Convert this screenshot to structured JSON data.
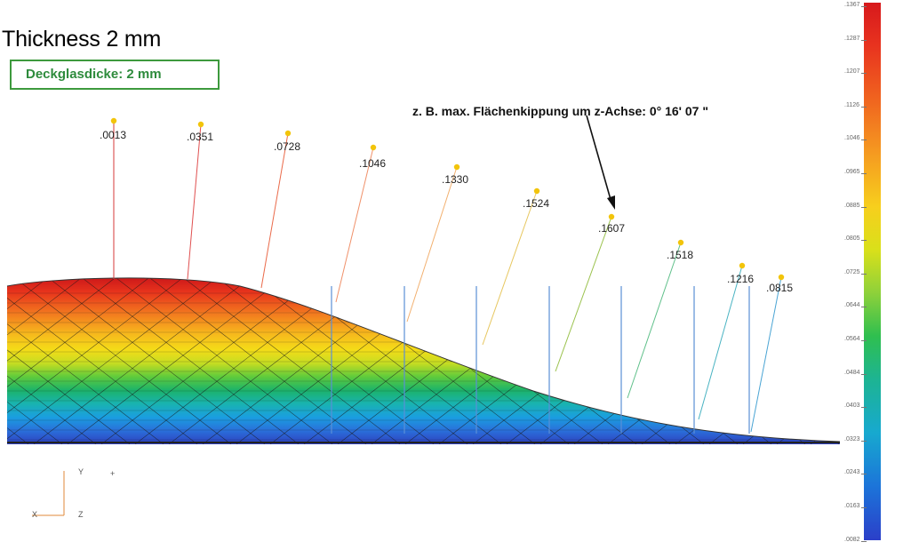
{
  "heading": "Thickness 2 mm",
  "box_label": "Deckglasdicke: 2 mm",
  "annotation": "z. B. max. Flächenkippung um z-Achse:   0° 16'  07 \"",
  "callouts": [
    {
      "label": ".0013"
    },
    {
      "label": ".0351"
    },
    {
      "label": ".0728"
    },
    {
      "label": ".1046"
    },
    {
      "label": ".1330"
    },
    {
      "label": ".1524"
    },
    {
      "label": ".1607"
    },
    {
      "label": ".1518"
    },
    {
      "label": ".1216"
    },
    {
      "label": ".0815"
    }
  ],
  "scale_ticks": [
    ".1367",
    ".1287",
    ".1207",
    ".1126",
    ".1046",
    ".0965",
    ".0885",
    ".0805",
    ".0725",
    ".0644",
    ".0564",
    ".0484",
    ".0403",
    ".0323",
    ".0243",
    ".0163",
    ".0082"
  ],
  "axis": {
    "y_label": "Y",
    "x_label": "X",
    "z_label": "Z",
    "plus": "+"
  },
  "colors": {
    "box_border": "#3d9a3d",
    "box_text": "#2e8b3c",
    "marker": "#f2c40a",
    "vline": "#5b8fd6"
  }
}
